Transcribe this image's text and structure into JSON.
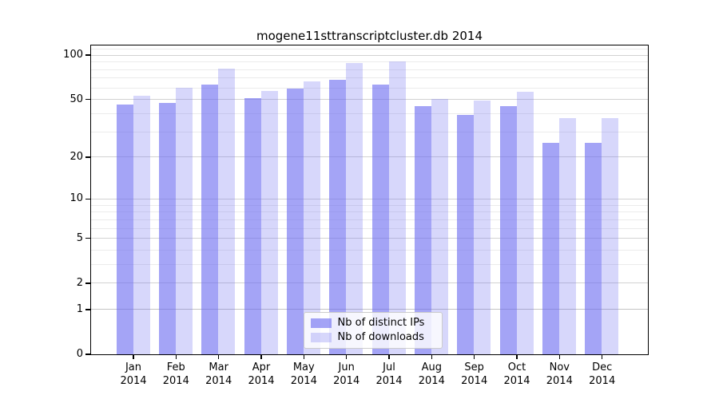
{
  "title": "mogene11sttranscriptcluster.db 2014",
  "chart_data": {
    "type": "bar",
    "title": "mogene11sttranscriptcluster.db 2014",
    "categories": [
      "Jan",
      "Feb",
      "Mar",
      "Apr",
      "May",
      "Jun",
      "Jul",
      "Aug",
      "Sep",
      "Oct",
      "Nov",
      "Dec"
    ],
    "year": "2014",
    "series": [
      {
        "name": "Nb of distinct IPs",
        "color": "rgba(108,108,240,0.62)",
        "values": [
          46,
          47,
          63,
          51,
          59,
          68,
          63,
          45,
          39,
          45,
          25,
          25
        ]
      },
      {
        "name": "Nb of downloads",
        "color": "rgba(108,108,240,0.27)",
        "values": [
          53,
          60,
          81,
          57,
          66,
          88,
          90,
          50,
          49,
          56,
          37,
          37
        ]
      }
    ],
    "y_axis": {
      "scale": "log10(1+x)",
      "tick_labels": [
        "100",
        "50",
        "20",
        "10",
        "5",
        "2",
        "1",
        "0"
      ],
      "tick_values": [
        100,
        50,
        20,
        10,
        5,
        2,
        1,
        0
      ],
      "minor_gridline_values": [
        3,
        4,
        6,
        7,
        8,
        9,
        30,
        40,
        60,
        70,
        80,
        90,
        110
      ],
      "range": [
        0,
        117
      ]
    },
    "x_axis": {
      "tick_label_format": "month newline year"
    },
    "legend": {
      "position": "bottom-center",
      "entries": [
        "Nb of distinct IPs",
        "Nb of downloads"
      ]
    },
    "grid": true
  },
  "colors": {
    "bar_distinct_ips": "rgba(108,108,240,0.62)",
    "bar_downloads": "rgba(108,108,240,0.27)",
    "major_gridline": "#d2d2d2",
    "minor_gridline": "#ebebeb",
    "axis_spine": "#000000",
    "background": "#ffffff"
  }
}
